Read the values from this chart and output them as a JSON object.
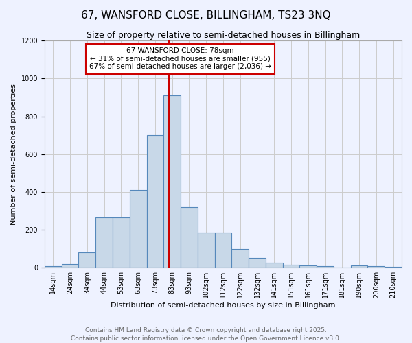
{
  "title": "67, WANSFORD CLOSE, BILLINGHAM, TS23 3NQ",
  "subtitle": "Size of property relative to semi-detached houses in Billingham",
  "xlabel": "Distribution of semi-detached houses by size in Billingham",
  "ylabel": "Number of semi-detached properties",
  "categories": [
    "14sqm",
    "24sqm",
    "34sqm",
    "44sqm",
    "53sqm",
    "63sqm",
    "73sqm",
    "83sqm",
    "93sqm",
    "102sqm",
    "112sqm",
    "122sqm",
    "132sqm",
    "141sqm",
    "151sqm",
    "161sqm",
    "171sqm",
    "181sqm",
    "190sqm",
    "200sqm",
    "210sqm"
  ],
  "values": [
    8,
    20,
    80,
    265,
    265,
    410,
    700,
    910,
    320,
    185,
    185,
    100,
    50,
    25,
    15,
    12,
    8,
    0,
    12,
    8,
    5
  ],
  "bar_color": "#c8d8e8",
  "bar_edge_color": "#5588bb",
  "property_label": "67 WANSFORD CLOSE: 78sqm",
  "pct_smaller": 31,
  "pct_smaller_n": 955,
  "pct_larger": 67,
  "pct_larger_n": 2036,
  "vline_x_index": 6.8,
  "annotation_box_color": "#ffffff",
  "annotation_box_edge": "#cc0000",
  "vline_color": "#cc0000",
  "ylim": [
    0,
    1200
  ],
  "yticks": [
    0,
    200,
    400,
    600,
    800,
    1000,
    1200
  ],
  "grid_color": "#cccccc",
  "bg_color": "#eef2ff",
  "footer_text": "Contains HM Land Registry data © Crown copyright and database right 2025.\nContains public sector information licensed under the Open Government Licence v3.0.",
  "title_fontsize": 11,
  "subtitle_fontsize": 9,
  "axis_label_fontsize": 8,
  "tick_fontsize": 7,
  "annotation_fontsize": 7.5,
  "footer_fontsize": 6.5
}
